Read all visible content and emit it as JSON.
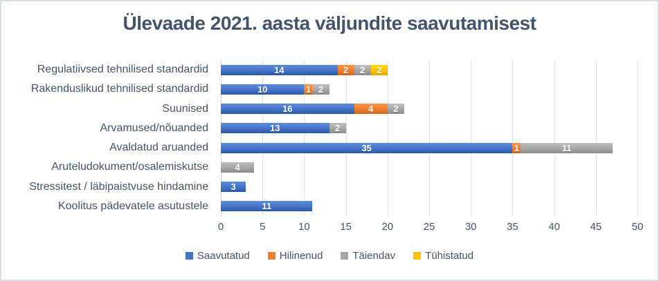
{
  "chart_data": {
    "type": "bar",
    "orientation": "horizontal",
    "stacked": true,
    "title": "Ülevaade 2021. aasta väljundite saavutamisest",
    "categories": [
      "Regulatiivsed tehnilised standardid",
      "Rakenduslikud tehnilised standardid",
      "Suunised",
      "Arvamused/nõuanded",
      "Avaldatud aruanded",
      "Aruteludokument/osalemiskutse",
      "Stressitest / läbipaistvuse hindamine",
      "Koolitus pädevatele asutustele"
    ],
    "series": [
      {
        "name": "Saavutatud",
        "color": "#4472C4",
        "values": [
          14,
          10,
          16,
          13,
          35,
          0,
          3,
          11
        ]
      },
      {
        "name": "Hilinenud",
        "color": "#ED7D31",
        "values": [
          2,
          1,
          4,
          0,
          1,
          0,
          0,
          0
        ]
      },
      {
        "name": "Täiendav",
        "color": "#A5A5A5",
        "values": [
          2,
          2,
          2,
          2,
          11,
          4,
          0,
          0
        ]
      },
      {
        "name": "Tühistatud",
        "color": "#FFC000",
        "values": [
          2,
          0,
          0,
          0,
          0,
          0,
          0,
          0
        ]
      }
    ],
    "xlabel": "",
    "ylabel": "",
    "xlim": [
      0,
      50
    ],
    "xticks": [
      0,
      5,
      10,
      15,
      20,
      25,
      30,
      35,
      40,
      45,
      50
    ],
    "grid": "vertical",
    "legend_position": "bottom",
    "data_labels": "white bold, centered in each segment, shown for nonzero values"
  },
  "colors": {
    "title_text": "#44546A",
    "axis_text": "#44546A",
    "gridline": "#DCE2EA",
    "frame_border": "#D7DEE5",
    "background": "#FFFFFF"
  }
}
